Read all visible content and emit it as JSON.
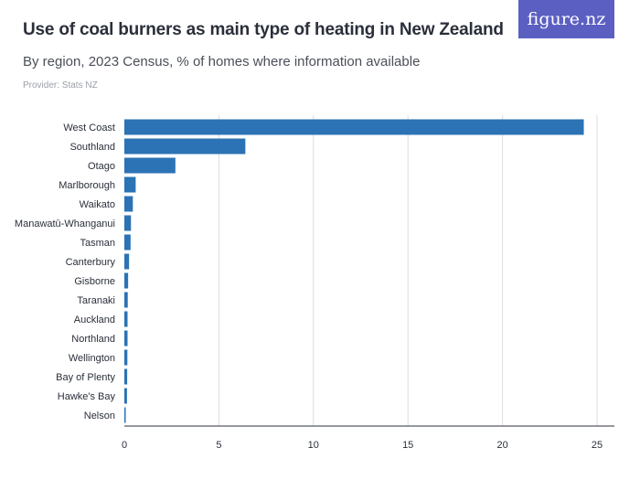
{
  "header": {
    "title": "Use of coal burners as main type of heating in New Zealand",
    "subtitle": "By region, 2023 Census, % of homes where information available",
    "provider": "Provider: Stats NZ",
    "logo_text": "figure.nz"
  },
  "colors": {
    "bar": "#2b73b4",
    "grid": "#dcdde1",
    "axis": "#2a2f3a",
    "logo_bg": "#5b5fc2"
  },
  "chart_data": {
    "type": "bar",
    "orientation": "horizontal",
    "categories": [
      "West Coast",
      "Southland",
      "Otago",
      "Marlborough",
      "Waikato",
      "Manawatū-Whanganui",
      "Tasman",
      "Canterbury",
      "Gisborne",
      "Taranaki",
      "Auckland",
      "Northland",
      "Wellington",
      "Bay of Plenty",
      "Hawke's Bay",
      "Nelson"
    ],
    "values": [
      24.3,
      6.4,
      2.7,
      0.6,
      0.45,
      0.35,
      0.33,
      0.25,
      0.2,
      0.18,
      0.17,
      0.17,
      0.16,
      0.15,
      0.14,
      0.06
    ],
    "xlim": [
      0,
      25
    ],
    "xticks": [
      0,
      5,
      10,
      15,
      20,
      25
    ],
    "grid": true,
    "legend": false
  }
}
